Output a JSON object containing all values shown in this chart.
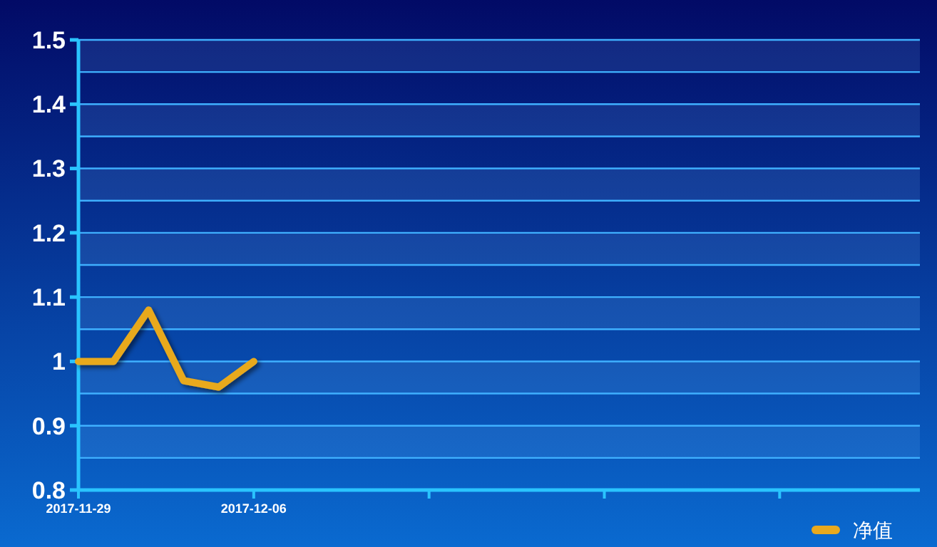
{
  "chart_data": {
    "type": "line",
    "categories": [
      "2017-11-29",
      null,
      null,
      null,
      null,
      "2017-12-06",
      null,
      null,
      null,
      null,
      null,
      null,
      null,
      null,
      null,
      null,
      null,
      null,
      null,
      null,
      null,
      null,
      null,
      null,
      null
    ],
    "series": [
      {
        "name": "净值",
        "color": "#e8a91e",
        "values": [
          1,
          1,
          1.08,
          0.97,
          0.96,
          1,
          null,
          null,
          null,
          null,
          null,
          null,
          null,
          null,
          null,
          null,
          null,
          null,
          null,
          null,
          null,
          null,
          null,
          null,
          null
        ]
      }
    ],
    "ylim": [
      0.8,
      1.5
    ],
    "yticks": [
      0.8,
      {
        "value": 0.85,
        "label": null
      },
      0.9,
      {
        "value": 0.95,
        "label": null
      },
      1,
      {
        "value": 1.05,
        "label": null
      },
      1.1,
      {
        "value": 1.15,
        "label": null
      },
      1.2,
      {
        "value": 1.25,
        "label": null
      },
      1.3,
      {
        "value": 1.35,
        "label": null
      },
      1.4,
      {
        "value": 1.45,
        "label": null
      },
      1.5
    ],
    "bands": [
      {
        "axis": "y",
        "from": 0.85,
        "to": 0.9,
        "color": "#78beff"
      },
      {
        "axis": "y",
        "from": 0.95,
        "to": 1,
        "color": "#78beff"
      },
      {
        "axis": "y",
        "from": 1.05,
        "to": 1.1,
        "color": "#78beff"
      },
      {
        "axis": "y",
        "from": 1.15,
        "to": 1.2,
        "color": "#78beff"
      },
      {
        "axis": "y",
        "from": 1.25,
        "to": 1.3,
        "color": "#78beff"
      },
      {
        "axis": "y",
        "from": 1.35,
        "to": 1.4,
        "color": "#78beff"
      },
      {
        "axis": "y",
        "from": 1.45,
        "to": 1.5,
        "color": "#78beff"
      }
    ],
    "grid": "y",
    "legend": "bottom right"
  }
}
